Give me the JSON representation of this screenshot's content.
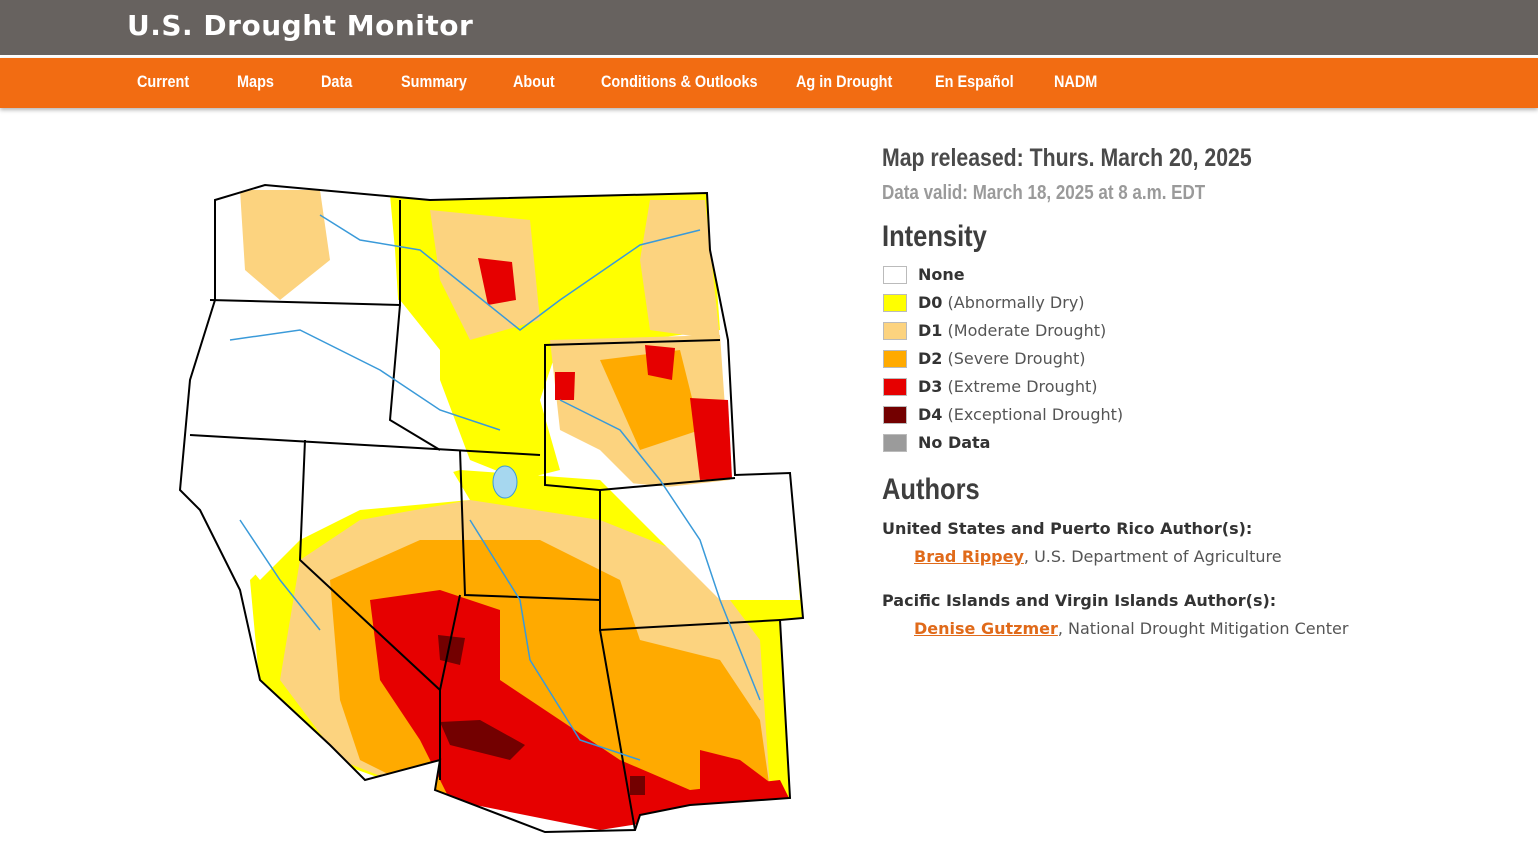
{
  "header": {
    "title": "U.S. Drought Monitor"
  },
  "nav": [
    "Current",
    "Maps",
    "Data",
    "Summary",
    "About",
    "Conditions & Outlooks",
    "Ag in Drought",
    "En Español",
    "NADM"
  ],
  "release": {
    "title": "Map released: Thurs. March 20, 2025",
    "valid": "Data valid: March 18, 2025 at 8 a.m. EDT"
  },
  "intensity": {
    "heading": "Intensity",
    "items": [
      {
        "code": "None",
        "color": "#ffffff"
      },
      {
        "code": "D0",
        "label": "(Abnormally Dry)",
        "color": "#ffff00"
      },
      {
        "code": "D1",
        "label": "(Moderate Drought)",
        "color": "#fcd37f"
      },
      {
        "code": "D2",
        "label": "(Severe Drought)",
        "color": "#ffaa00"
      },
      {
        "code": "D3",
        "label": "(Extreme Drought)",
        "color": "#e60000"
      },
      {
        "code": "D4",
        "label": "(Exceptional Drought)",
        "color": "#730000"
      },
      {
        "code": "No Data",
        "color": "#9b9b9b"
      }
    ]
  },
  "authors": {
    "heading": "Authors",
    "groups": [
      {
        "title": "United States and Puerto Rico Author(s):",
        "name": "Brad Rippey",
        "affiliation": ", U.S. Department of Agriculture"
      },
      {
        "title": "Pacific Islands and Virgin Islands Author(s):",
        "name": "Denise Gutzmer",
        "affiliation": ", National Drought Mitigation Center"
      }
    ]
  }
}
